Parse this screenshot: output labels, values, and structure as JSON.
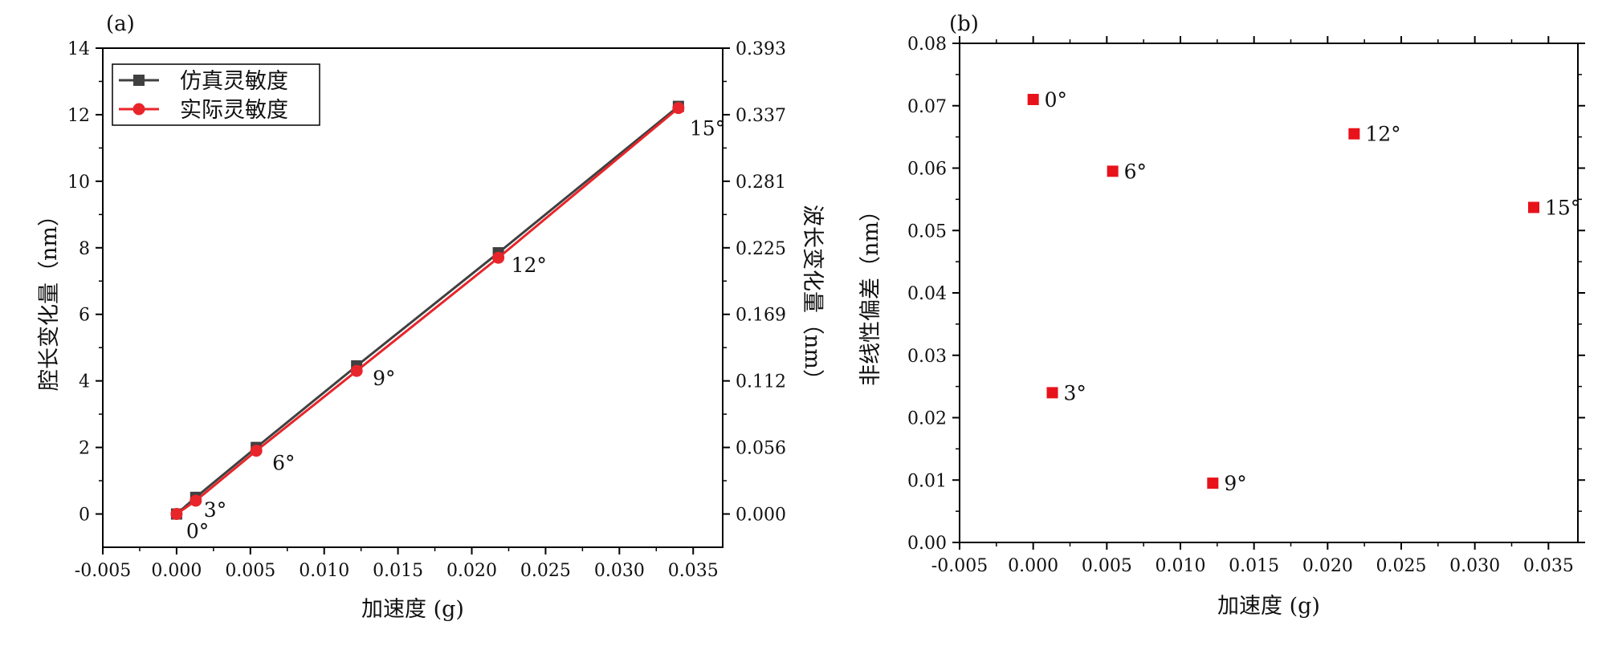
{
  "chart_data": [
    {
      "panel_label": "(a)",
      "type": "line",
      "xlabel": "加速度 (g)",
      "ylabel": "腔长变化量（nm）",
      "y2label": "波长变化量（nm）",
      "xlim": [
        -0.005,
        0.037
      ],
      "ylim": [
        -1,
        14
      ],
      "xticks": [
        -0.005,
        0.0,
        0.005,
        0.01,
        0.015,
        0.02,
        0.025,
        0.03,
        0.035
      ],
      "xtick_labels": [
        "-0.005",
        "0.000",
        "0.005",
        "0.010",
        "0.015",
        "0.020",
        "0.025",
        "0.030",
        "0.035"
      ],
      "yticks": [
        0,
        2,
        4,
        6,
        8,
        10,
        12,
        14
      ],
      "ytick_labels": [
        "0",
        "2",
        "4",
        "6",
        "8",
        "10",
        "12",
        "14"
      ],
      "y2ticks": [
        0,
        2,
        4,
        6,
        8,
        10,
        12,
        14
      ],
      "y2tick_labels": [
        "0.000",
        "0.056",
        "0.112",
        "0.169",
        "0.225",
        "0.281",
        "0.337",
        "0.393"
      ],
      "legend_position": "top-left",
      "x": [
        0.0,
        0.0013,
        0.0054,
        0.0122,
        0.0218,
        0.034
      ],
      "series": [
        {
          "name": "仿真灵敏度",
          "color": "#404040",
          "marker": "square",
          "values": [
            0.0,
            0.5,
            2.0,
            4.45,
            7.85,
            12.25
          ]
        },
        {
          "name": "实际灵敏度",
          "color": "#e8252a",
          "marker": "circle",
          "values": [
            0.0,
            0.4,
            1.9,
            4.3,
            7.7,
            12.2
          ]
        }
      ],
      "annotations": [
        {
          "text": "0°",
          "x": 0.0,
          "y": 0.0
        },
        {
          "text": "3°",
          "x": 0.0013,
          "y": 0.45
        },
        {
          "text": "6°",
          "x": 0.0054,
          "y": 1.95
        },
        {
          "text": "9°",
          "x": 0.0122,
          "y": 4.35
        },
        {
          "text": "12°",
          "x": 0.0218,
          "y": 7.75
        },
        {
          "text": "15°",
          "x": 0.034,
          "y": 12.2
        }
      ]
    },
    {
      "panel_label": "(b)",
      "type": "scatter",
      "xlabel": "加速度 (g)",
      "ylabel": "非线性偏差（nm）",
      "xlim": [
        -0.005,
        0.037
      ],
      "ylim": [
        0.0,
        0.08
      ],
      "xticks": [
        -0.005,
        0.0,
        0.005,
        0.01,
        0.015,
        0.02,
        0.025,
        0.03,
        0.035
      ],
      "xtick_labels": [
        "-0.005",
        "0.000",
        "0.005",
        "0.010",
        "0.015",
        "0.020",
        "0.025",
        "0.030",
        "0.035"
      ],
      "yticks": [
        0.0,
        0.01,
        0.02,
        0.03,
        0.04,
        0.05,
        0.06,
        0.07,
        0.08
      ],
      "ytick_labels": [
        "0.00",
        "0.01",
        "0.02",
        "0.03",
        "0.04",
        "0.05",
        "0.06",
        "0.07",
        "0.08"
      ],
      "color": "#e8121a",
      "points": [
        {
          "x": 0.0,
          "y": 0.071,
          "label": "0°"
        },
        {
          "x": 0.0013,
          "y": 0.024,
          "label": "3°"
        },
        {
          "x": 0.0054,
          "y": 0.0595,
          "label": "6°"
        },
        {
          "x": 0.0122,
          "y": 0.0095,
          "label": "9°"
        },
        {
          "x": 0.0218,
          "y": 0.0655,
          "label": "12°"
        },
        {
          "x": 0.034,
          "y": 0.0537,
          "label": "15°"
        }
      ]
    }
  ]
}
